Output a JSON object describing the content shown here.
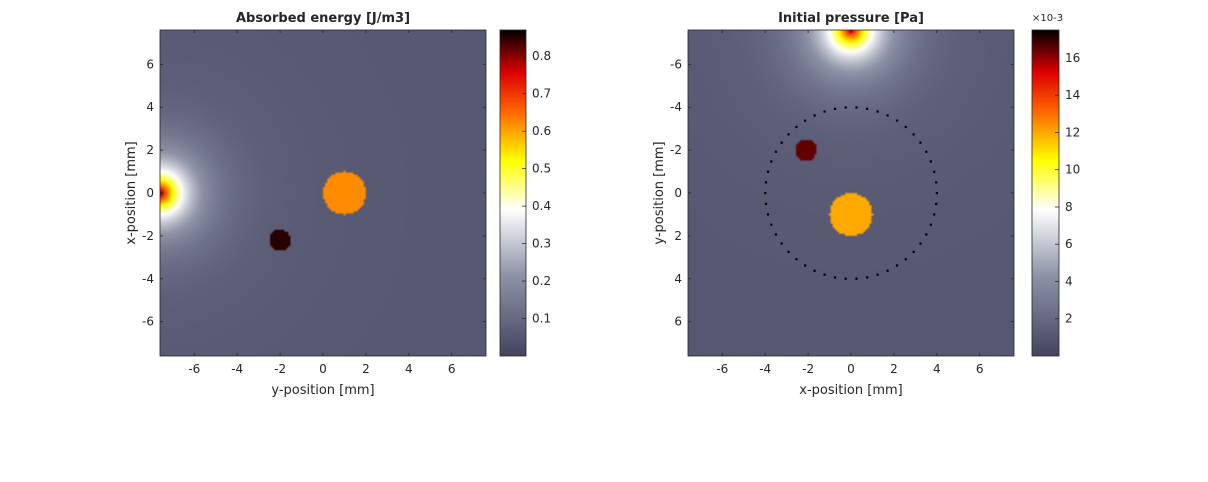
{
  "chart_data": [
    {
      "type": "heatmap",
      "title": "Absorbed energy [J/m3]",
      "xlabel": "y-position [mm]",
      "ylabel": "x-position [mm]",
      "xlim": [
        -7.6,
        7.6
      ],
      "ylim": [
        -7.6,
        7.6
      ],
      "y_direction": "normal",
      "x_ticks": [
        -6,
        -4,
        -2,
        0,
        2,
        4,
        6
      ],
      "x_tick_labels": [
        "-6",
        "-4",
        "-2",
        "0",
        "2",
        "4",
        "6"
      ],
      "y_ticks": [
        6,
        4,
        2,
        0,
        -2,
        -4,
        -6
      ],
      "y_tick_labels": [
        "6",
        "4",
        "2",
        "0",
        "-2",
        "-4",
        "-6"
      ],
      "colorbar": {
        "range": [
          0.0,
          0.87
        ],
        "ticks": [
          0.1,
          0.2,
          0.3,
          0.4,
          0.5,
          0.6,
          0.7,
          0.8
        ],
        "tick_labels": [
          "0.1",
          "0.2",
          "0.3",
          "0.4",
          "0.5",
          "0.6",
          "0.7",
          "0.8"
        ],
        "exponent_label": ""
      },
      "background_value": 0.05,
      "light_source": {
        "x": -7.6,
        "y": 0.0,
        "peak": 0.75,
        "glow_radius_mm": 1.9
      },
      "objects": [
        {
          "shape": "disc",
          "center_x": 1.0,
          "center_y": 0.0,
          "radius_mm": 1.0,
          "value": 0.62
        },
        {
          "shape": "disc",
          "center_x": -2.0,
          "center_y": -2.2,
          "radius_mm": 0.5,
          "value": 0.85
        }
      ],
      "sensor_ring": null
    },
    {
      "type": "heatmap",
      "title": "Initial pressure [Pa]",
      "xlabel": "x-position [mm]",
      "ylabel": "y-position [mm]",
      "xlim": [
        -7.6,
        7.6
      ],
      "ylim": [
        -7.6,
        7.6
      ],
      "y_direction": "reverse",
      "x_ticks": [
        -6,
        -4,
        -2,
        0,
        2,
        4,
        6
      ],
      "x_tick_labels": [
        "-6",
        "-4",
        "-2",
        "0",
        "2",
        "4",
        "6"
      ],
      "y_ticks": [
        -6,
        -4,
        -2,
        0,
        2,
        4,
        6
      ],
      "y_tick_labels": [
        "-6",
        "-4",
        "-2",
        "0",
        "2",
        "4",
        "6"
      ],
      "colorbar": {
        "range": [
          0.0,
          17.5
        ],
        "ticks": [
          2,
          4,
          6,
          8,
          10,
          12,
          14,
          16
        ],
        "tick_labels": [
          "2",
          "4",
          "6",
          "8",
          "10",
          "12",
          "14",
          "16"
        ],
        "exponent_label": "×10-3"
      },
      "background_value": 1.0,
      "light_source": {
        "x": 0.0,
        "y": -7.6,
        "peak": 14.5,
        "glow_radius_mm": 2.0
      },
      "objects": [
        {
          "shape": "disc",
          "center_x": 0.0,
          "center_y": 1.0,
          "radius_mm": 1.0,
          "value": 12.0
        },
        {
          "shape": "disc",
          "center_x": -2.1,
          "center_y": -2.0,
          "radius_mm": 0.5,
          "value": 16.5
        }
      ],
      "sensor_ring": {
        "center_x": 0.0,
        "center_y": 0.0,
        "radius_mm": 4.0,
        "points": 50
      }
    }
  ]
}
